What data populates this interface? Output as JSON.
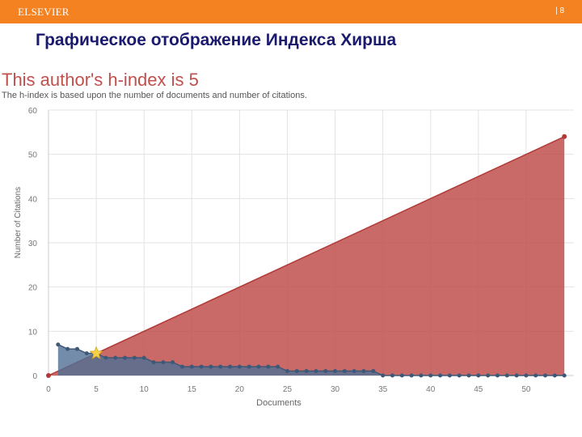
{
  "header": {
    "brand": "ELSEVIER",
    "page_number": "| 8"
  },
  "slide": {
    "title": "Графическое отображение Индекса Хирша"
  },
  "chart_heading": {
    "title": "This author's h-index is 5",
    "subtitle": "The h-index is based upon the number of documents and number of citations."
  },
  "colors": {
    "topbar": "#f58220",
    "red_area": "#c0504d",
    "blue_area": "#4f6f95",
    "star": "#f7d14a"
  },
  "chart_data": {
    "type": "area",
    "title": "This author's h-index is 5",
    "subtitle": "The h-index is based upon the number of documents and number of citations.",
    "xlabel": "Documents",
    "ylabel": "Number of Citations",
    "xlim": [
      0,
      55
    ],
    "ylim": [
      0,
      60
    ],
    "xticks": [
      0,
      5,
      10,
      15,
      20,
      25,
      30,
      35,
      40,
      45,
      50
    ],
    "yticks": [
      0,
      10,
      20,
      30,
      40,
      50,
      60
    ],
    "grid": true,
    "h_index": 5,
    "series": [
      {
        "kind": "line",
        "points": [
          [
            0,
            0
          ],
          [
            54,
            54
          ]
        ]
      },
      {
        "kind": "citations",
        "x": [
          1,
          2,
          3,
          4,
          5,
          6,
          7,
          8,
          9,
          10,
          11,
          12,
          13,
          14,
          15,
          16,
          17,
          18,
          19,
          20,
          21,
          22,
          23,
          24,
          25,
          26,
          27,
          28,
          29,
          30,
          31,
          32,
          33,
          34,
          35,
          36,
          37,
          38,
          39,
          40,
          41,
          42,
          43,
          44,
          45,
          46,
          47,
          48,
          49,
          50,
          51,
          52,
          53,
          54
        ],
        "values": [
          7,
          6,
          6,
          5,
          5,
          4,
          4,
          4,
          4,
          4,
          3,
          3,
          3,
          2,
          2,
          2,
          2,
          2,
          2,
          2,
          2,
          2,
          2,
          2,
          1,
          1,
          1,
          1,
          1,
          1,
          1,
          1,
          1,
          1,
          0,
          0,
          0,
          0,
          0,
          0,
          0,
          0,
          0,
          0,
          0,
          0,
          0,
          0,
          0,
          0,
          0,
          0,
          0,
          0
        ]
      }
    ]
  }
}
